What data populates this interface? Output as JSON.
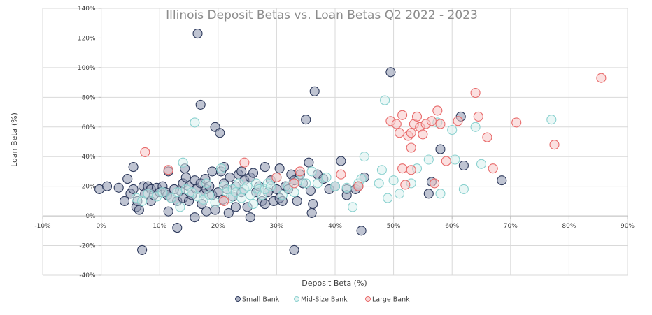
{
  "chart_data": {
    "type": "scatter",
    "title": "Illinois Deposit Betas vs. Loan Betas Q2 2022 - 2023",
    "xlabel": "Deposit Beta (%)",
    "ylabel": "Loan Beta (%)",
    "xlim": [
      -10,
      90
    ],
    "ylim": [
      -40,
      140
    ],
    "xticks": [
      -10,
      0,
      10,
      20,
      30,
      40,
      50,
      60,
      70,
      80,
      90
    ],
    "yticks": [
      -40,
      -20,
      0,
      20,
      40,
      60,
      80,
      100,
      120,
      140
    ],
    "x_tick_labels": [
      "-10%",
      "0%",
      "10%",
      "20%",
      "30%",
      "40%",
      "50%",
      "60%",
      "70%",
      "80%",
      "90%"
    ],
    "y_tick_labels": [
      "-40%",
      "-20%",
      "0%",
      "20%",
      "40%",
      "60%",
      "80%",
      "100%",
      "120%",
      "140%"
    ],
    "grid": true,
    "legend_position": "bottom",
    "series": [
      {
        "name": "Small Bank",
        "color": "#2e3a5c",
        "fill": "#8a93ad",
        "points": [
          [
            -0.3,
            18
          ],
          [
            1,
            20
          ],
          [
            3,
            19
          ],
          [
            4,
            10
          ],
          [
            4.5,
            25
          ],
          [
            5,
            15
          ],
          [
            5.5,
            33
          ],
          [
            5.5,
            18
          ],
          [
            6,
            6
          ],
          [
            6.2,
            10
          ],
          [
            6.5,
            4
          ],
          [
            7,
            -23
          ],
          [
            7.2,
            20
          ],
          [
            7.5,
            15
          ],
          [
            8,
            20
          ],
          [
            8.5,
            18
          ],
          [
            8.5,
            10
          ],
          [
            9,
            14
          ],
          [
            9.5,
            19
          ],
          [
            10,
            16
          ],
          [
            10.5,
            20
          ],
          [
            11,
            16
          ],
          [
            11.3,
            14
          ],
          [
            11.5,
            3
          ],
          [
            11.5,
            30
          ],
          [
            12,
            12
          ],
          [
            12.5,
            18
          ],
          [
            13,
            10
          ],
          [
            13,
            -8
          ],
          [
            13.5,
            17
          ],
          [
            14,
            22
          ],
          [
            14,
            12
          ],
          [
            14.3,
            32
          ],
          [
            14.5,
            26
          ],
          [
            15,
            20
          ],
          [
            15,
            10
          ],
          [
            15.5,
            14
          ],
          [
            16,
            24
          ],
          [
            16,
            -1
          ],
          [
            16.3,
            18
          ],
          [
            16.5,
            123
          ],
          [
            17,
            75
          ],
          [
            17,
            22
          ],
          [
            17.2,
            8
          ],
          [
            17.5,
            15
          ],
          [
            17.8,
            25
          ],
          [
            18,
            18
          ],
          [
            18,
            3
          ],
          [
            18.5,
            20
          ],
          [
            19,
            14
          ],
          [
            19,
            30
          ],
          [
            19.5,
            4
          ],
          [
            19.5,
            60
          ],
          [
            20,
            16
          ],
          [
            20.3,
            56
          ],
          [
            20.5,
            30
          ],
          [
            20.8,
            11
          ],
          [
            21,
            22
          ],
          [
            21,
            33
          ],
          [
            21.5,
            18
          ],
          [
            21.8,
            2
          ],
          [
            22,
            26
          ],
          [
            22.5,
            13
          ],
          [
            23,
            20
          ],
          [
            23,
            6
          ],
          [
            23.5,
            28
          ],
          [
            24,
            30
          ],
          [
            24,
            16
          ],
          [
            24.5,
            24
          ],
          [
            25,
            6
          ],
          [
            25.5,
            -1
          ],
          [
            25.5,
            26
          ],
          [
            26,
            29
          ],
          [
            26.5,
            16
          ],
          [
            27,
            20
          ],
          [
            27.5,
            10
          ],
          [
            28,
            33
          ],
          [
            28,
            8
          ],
          [
            28.5,
            16
          ],
          [
            29,
            24
          ],
          [
            29.5,
            10
          ],
          [
            30,
            18
          ],
          [
            30.5,
            32
          ],
          [
            30.5,
            12
          ],
          [
            31,
            10
          ],
          [
            31.5,
            20
          ],
          [
            32,
            18
          ],
          [
            32.5,
            28
          ],
          [
            33,
            -23
          ],
          [
            33,
            24
          ],
          [
            33.5,
            10
          ],
          [
            34,
            28
          ],
          [
            34.5,
            22
          ],
          [
            35,
            65
          ],
          [
            35.5,
            36
          ],
          [
            35.8,
            17
          ],
          [
            36,
            2
          ],
          [
            36.2,
            8
          ],
          [
            36.5,
            84
          ],
          [
            37,
            28
          ],
          [
            38,
            25
          ],
          [
            39,
            18
          ],
          [
            40,
            20
          ],
          [
            41,
            37
          ],
          [
            42,
            18
          ],
          [
            42,
            14
          ],
          [
            43.5,
            18
          ],
          [
            44,
            20
          ],
          [
            44.5,
            -10
          ],
          [
            45,
            26
          ],
          [
            49.5,
            97
          ],
          [
            56,
            15
          ],
          [
            56.5,
            23
          ],
          [
            58,
            45
          ],
          [
            61.5,
            67
          ],
          [
            62,
            34
          ],
          [
            68.5,
            24
          ]
        ]
      },
      {
        "name": "Mid-Size Bank",
        "color": "#8ad1cf",
        "fill": "#d9f0ee",
        "points": [
          [
            6,
            12
          ],
          [
            7,
            10
          ],
          [
            8,
            15
          ],
          [
            9.5,
            13
          ],
          [
            10.5,
            16
          ],
          [
            12,
            12
          ],
          [
            13,
            16
          ],
          [
            13.5,
            6
          ],
          [
            14,
            36
          ],
          [
            14.5,
            18
          ],
          [
            15.5,
            16
          ],
          [
            16,
            63
          ],
          [
            16.5,
            13
          ],
          [
            17.5,
            11
          ],
          [
            18,
            22
          ],
          [
            18.5,
            14
          ],
          [
            19.5,
            9
          ],
          [
            20.5,
            32
          ],
          [
            21,
            20
          ],
          [
            21.5,
            16
          ],
          [
            22,
            12
          ],
          [
            22.5,
            18
          ],
          [
            23,
            16
          ],
          [
            23.5,
            22
          ],
          [
            24,
            12
          ],
          [
            24.5,
            18
          ],
          [
            25,
            20
          ],
          [
            25.5,
            14
          ],
          [
            26,
            8
          ],
          [
            26.5,
            22
          ],
          [
            27,
            18
          ],
          [
            27.5,
            14
          ],
          [
            28,
            18
          ],
          [
            28.5,
            22
          ],
          [
            29,
            20
          ],
          [
            30,
            26
          ],
          [
            31,
            14
          ],
          [
            32,
            20
          ],
          [
            33,
            16
          ],
          [
            34,
            24
          ],
          [
            35,
            22
          ],
          [
            36,
            30
          ],
          [
            37,
            22
          ],
          [
            38.5,
            26
          ],
          [
            40,
            20
          ],
          [
            42,
            19
          ],
          [
            43,
            6
          ],
          [
            44,
            22
          ],
          [
            44.5,
            25
          ],
          [
            45,
            40
          ],
          [
            47.5,
            22
          ],
          [
            48,
            31
          ],
          [
            48.5,
            78
          ],
          [
            49,
            12
          ],
          [
            50,
            24
          ],
          [
            51,
            15
          ],
          [
            53,
            22
          ],
          [
            54,
            32
          ],
          [
            56,
            38
          ],
          [
            57.5,
            63
          ],
          [
            58,
            15
          ],
          [
            60,
            58
          ],
          [
            60.5,
            38
          ],
          [
            62,
            18
          ],
          [
            64,
            60
          ],
          [
            65,
            35
          ],
          [
            77,
            65
          ]
        ]
      },
      {
        "name": "Large Bank",
        "color": "#e86a6a",
        "fill": "#f8c7c7",
        "points": [
          [
            7.5,
            43
          ],
          [
            11.5,
            31
          ],
          [
            21,
            10
          ],
          [
            24.5,
            36
          ],
          [
            30,
            26
          ],
          [
            33,
            22
          ],
          [
            34,
            30
          ],
          [
            41,
            28
          ],
          [
            44,
            20
          ],
          [
            49.5,
            64
          ],
          [
            50.5,
            62
          ],
          [
            51,
            56
          ],
          [
            51.5,
            68
          ],
          [
            51.5,
            32
          ],
          [
            52,
            21
          ],
          [
            52.5,
            54
          ],
          [
            53,
            46
          ],
          [
            53,
            56
          ],
          [
            53,
            31
          ],
          [
            53.5,
            62
          ],
          [
            54,
            67
          ],
          [
            54.5,
            60
          ],
          [
            55,
            55
          ],
          [
            55.5,
            62
          ],
          [
            56.5,
            64
          ],
          [
            57,
            22
          ],
          [
            57.5,
            71
          ],
          [
            58,
            62
          ],
          [
            59,
            37
          ],
          [
            61,
            64
          ],
          [
            64,
            83
          ],
          [
            64.5,
            67
          ],
          [
            66,
            53
          ],
          [
            67,
            32
          ],
          [
            71,
            63
          ],
          [
            77.5,
            48
          ],
          [
            85.5,
            93
          ]
        ]
      }
    ]
  }
}
